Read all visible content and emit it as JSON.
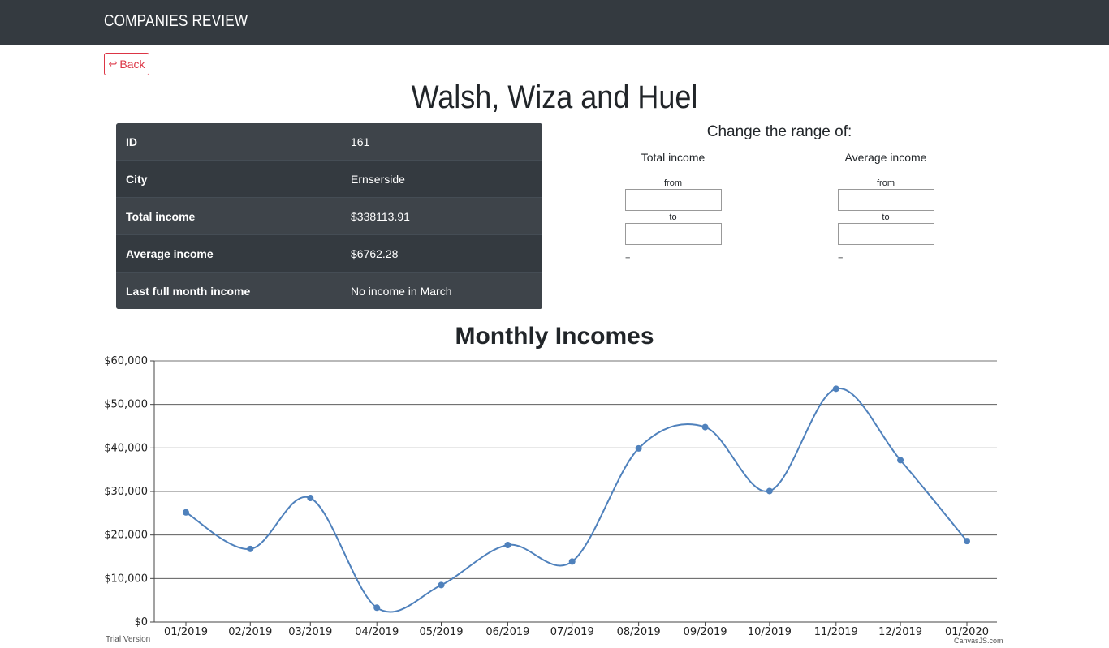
{
  "navbar": {
    "brand": "COMPANIES REVIEW"
  },
  "back_button": {
    "label": "Back",
    "icon": "return-arrow-icon"
  },
  "company": {
    "name": "Walsh, Wiza and Huel"
  },
  "info_table": {
    "rows": [
      {
        "label": "ID",
        "value": "161"
      },
      {
        "label": "City",
        "value": "Ernserside"
      },
      {
        "label": "Total income",
        "value": "$338113.91"
      },
      {
        "label": "Average income",
        "value": "$6762.28"
      },
      {
        "label": "Last full month income",
        "value": "No income in March"
      }
    ]
  },
  "range": {
    "title": "Change the range of:",
    "total": {
      "title": "Total income",
      "from_label": "from",
      "to_label": "to",
      "from_value": "",
      "to_value": "",
      "result": "="
    },
    "average": {
      "title": "Average income",
      "from_label": "from",
      "to_label": "to",
      "from_value": "",
      "to_value": "",
      "result": "="
    }
  },
  "chart_data": {
    "type": "line",
    "title": "Monthly Incomes",
    "xlabel": "",
    "ylabel": "",
    "ylim": [
      0,
      60000
    ],
    "yticks": [
      "$0",
      "$10,000",
      "$20,000",
      "$30,000",
      "$40,000",
      "$50,000",
      "$60,000"
    ],
    "ytick_values": [
      0,
      10000,
      20000,
      30000,
      40000,
      50000,
      60000
    ],
    "categories": [
      "01/2019",
      "02/2019",
      "03/2019",
      "04/2019",
      "05/2019",
      "06/2019",
      "07/2019",
      "08/2019",
      "09/2019",
      "10/2019",
      "11/2019",
      "12/2019",
      "01/2020"
    ],
    "x_positions": [
      0,
      30,
      58,
      89,
      119,
      150,
      180,
      211,
      242,
      272,
      303,
      333,
      364
    ],
    "values": [
      25200,
      16800,
      28500,
      3300,
      8500,
      17700,
      13900,
      39900,
      44800,
      30100,
      53600,
      37200,
      18600
    ],
    "grid": true,
    "line_color": "#4f81bc"
  },
  "footer": {
    "trial": "Trial Version",
    "credit": "CanvasJS.com"
  }
}
